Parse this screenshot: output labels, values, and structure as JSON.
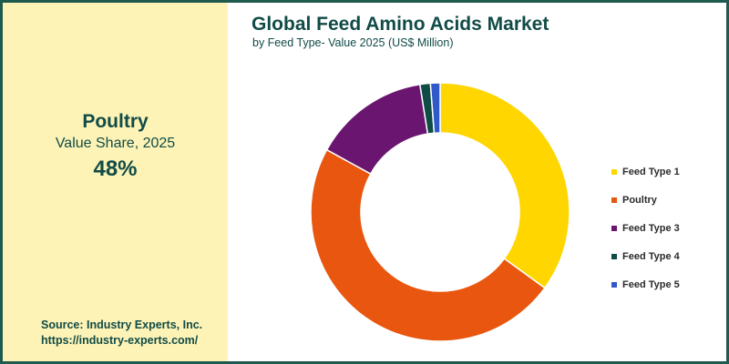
{
  "title": "Global Feed Amino Acids Market",
  "subtitle": "by Feed Type- Value 2025 (US$ Million)",
  "highlight": {
    "category": "Poultry",
    "metric": "Value Share, 2025",
    "value": "48%"
  },
  "source": {
    "line1": "Source: Industry Experts, Inc.",
    "line2": "https://industry-experts.com/"
  },
  "chart_data": {
    "type": "pie",
    "donut": true,
    "categories": [
      "Feed Type 1",
      "Poultry",
      "Feed Type 3",
      "Feed Type 4",
      "Feed Type 5"
    ],
    "values": [
      35,
      48,
      14.5,
      1.3,
      1.2
    ],
    "colors": [
      "#ffd600",
      "#e8560f",
      "#6a1670",
      "#0e4c44",
      "#2f5ac8"
    ],
    "legend_position": "right"
  }
}
